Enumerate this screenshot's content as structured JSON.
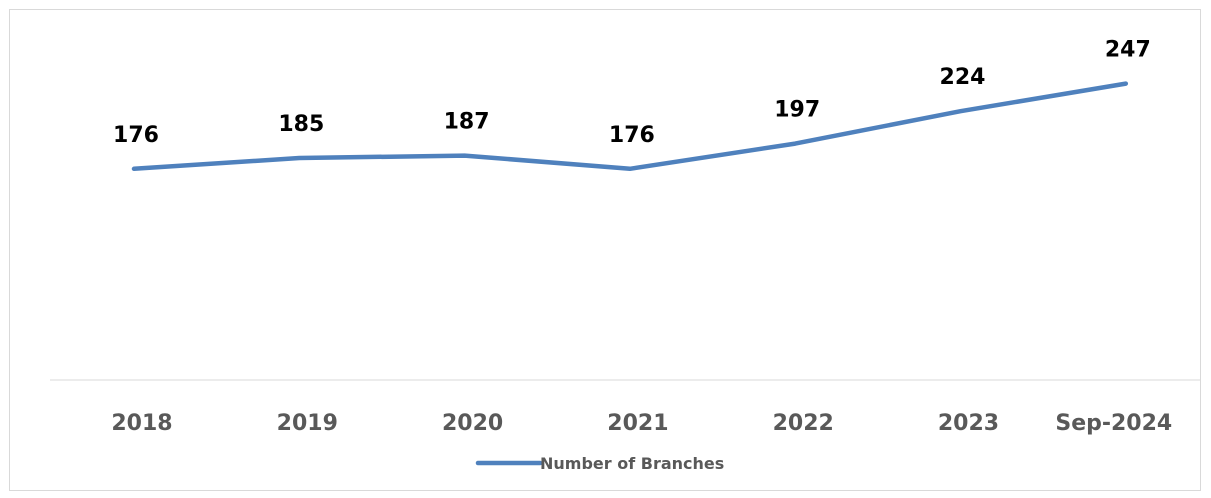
{
  "chart_data": {
    "type": "line",
    "categories": [
      "2018",
      "2019",
      "2020",
      "2021",
      "2022",
      "2023",
      "Sep-2024"
    ],
    "series": [
      {
        "name": "Number of Branches",
        "values": [
          176,
          185,
          187,
          176,
          197,
          224,
          247
        ],
        "color": "#4f81bd"
      }
    ],
    "data_labels": [
      "176",
      "185",
      "187",
      "176",
      "197",
      "224",
      "247"
    ],
    "title": "",
    "xlabel": "",
    "ylabel": "",
    "ylim": [
      0,
      300
    ],
    "grid": false,
    "y_axis_visible": false,
    "legend": {
      "position": "bottom",
      "label": "Number of Branches"
    }
  }
}
